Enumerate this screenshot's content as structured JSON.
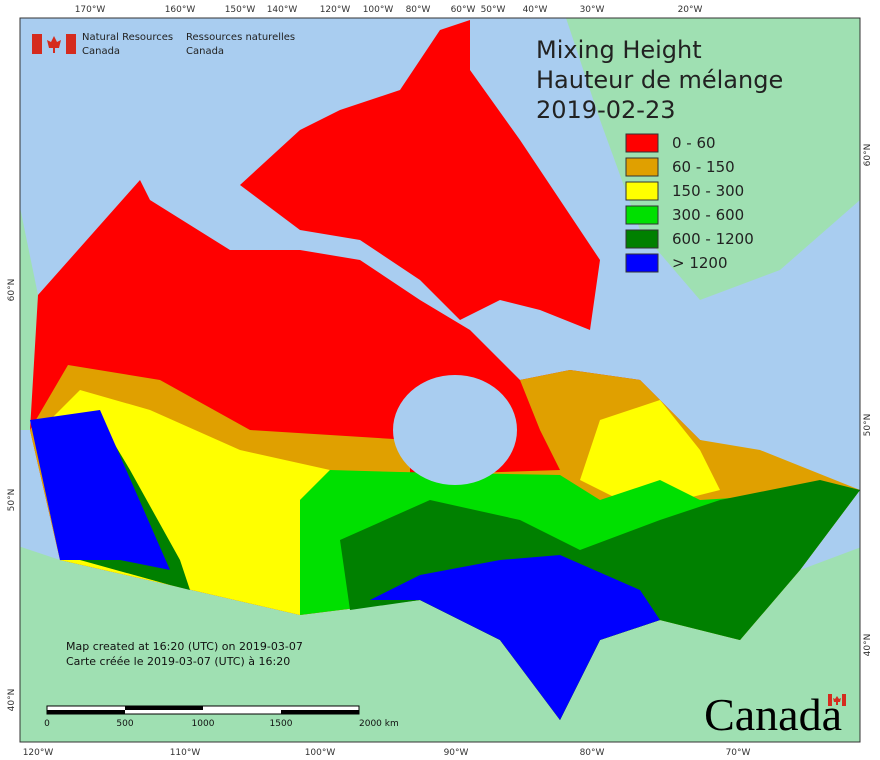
{
  "credits": {
    "en": [
      "Natural Resources",
      "Canada"
    ],
    "fr": [
      "Ressources naturelles",
      "Canada"
    ]
  },
  "title": [
    "Mixing Height",
    "Hauteur de mélange",
    "2019-02-23"
  ],
  "legend": [
    {
      "label": "0 - 60",
      "color": "#ff0000"
    },
    {
      "label": "60 - 150",
      "color": "#e0a000"
    },
    {
      "label": "150 - 300",
      "color": "#ffff00"
    },
    {
      "label": "300 - 600",
      "color": "#00e000"
    },
    {
      "label": "600 - 1200",
      "color": "#008000"
    },
    {
      "label": "> 1200",
      "color": "#0000ff"
    }
  ],
  "graticule": {
    "top": [
      "170°W",
      "160°W",
      "150°W",
      "140°W",
      "120°W",
      "100°W",
      "80°W",
      "60°W",
      "50°W",
      "40°W",
      "30°W",
      "20°W"
    ],
    "bottom": [
      "120°W",
      "110°W",
      "100°W",
      "90°W",
      "80°W",
      "70°W"
    ],
    "left": [
      "60°N",
      "50°N",
      "40°N"
    ],
    "right": [
      "60°N",
      "50°N",
      "40°N"
    ]
  },
  "footnote": [
    "Map created at 16:20 (UTC) on 2019-03-07",
    "Carte créée le 2019-03-07 (UTC) à 16:20"
  ],
  "scale_bar": {
    "labels": [
      "0",
      "500",
      "1000",
      "1500",
      "2000 km"
    ]
  },
  "wordmark": "Canada"
}
